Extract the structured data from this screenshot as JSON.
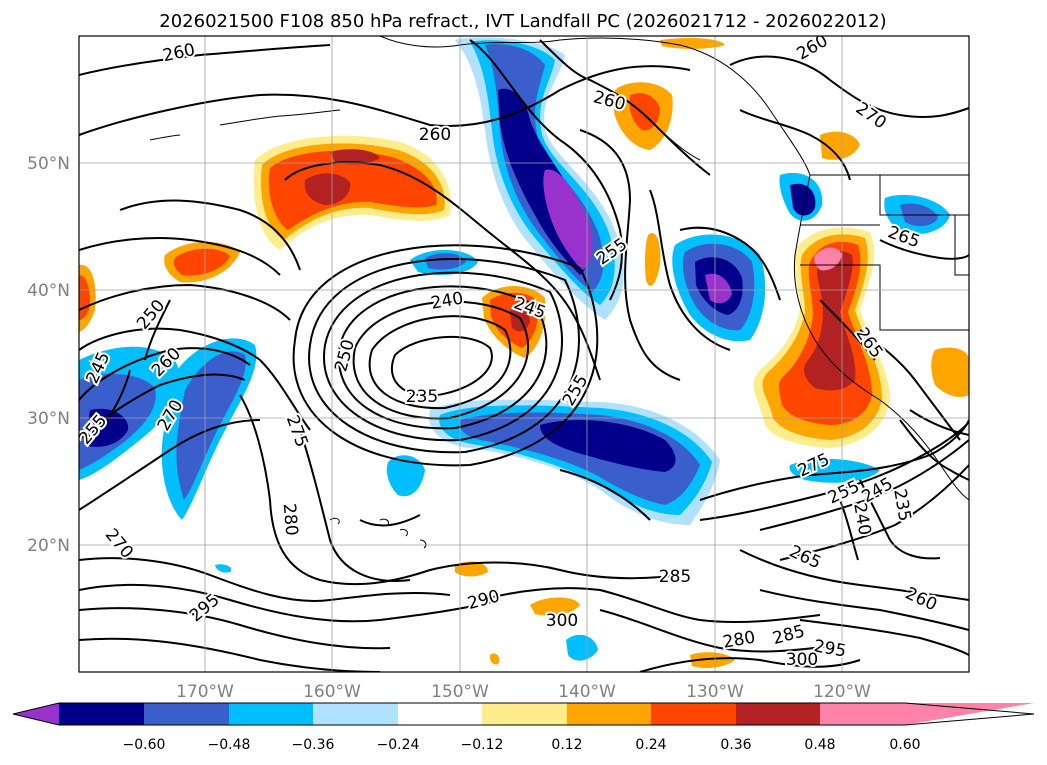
{
  "title": "2026021500 F108 850 hPa refract., IVT Landfall PC (2026021712 - 2026022012)",
  "axes": {
    "lon_labels": [
      "170°W",
      "160°W",
      "150°W",
      "140°W",
      "130°W",
      "120°W"
    ],
    "lat_labels": [
      "50°N",
      "40°N",
      "30°N",
      "20°N"
    ]
  },
  "colorbar": {
    "ticks": [
      "−0.60",
      "−0.48",
      "−0.36",
      "−0.24",
      "−0.12",
      "0.12",
      "0.24",
      "0.36",
      "0.48",
      "0.60"
    ],
    "colors": [
      "#9932cc",
      "#00008b",
      "#3a5fcd",
      "#00bfff",
      "#b0e2ff",
      "#ffffff",
      "#ffec8b",
      "#ffa500",
      "#ff4500",
      "#b22222",
      "#ff82ab"
    ]
  },
  "contour_labels": [
    "260",
    "260",
    "260",
    "260",
    "270",
    "255",
    "265",
    "240",
    "245",
    "250",
    "235",
    "255",
    "265",
    "245",
    "250",
    "260",
    "270",
    "255",
    "275",
    "280",
    "270",
    "275",
    "255",
    "245",
    "235",
    "240",
    "265",
    "285",
    "290",
    "300",
    "280",
    "285",
    "295",
    "300",
    "260",
    "295"
  ]
}
